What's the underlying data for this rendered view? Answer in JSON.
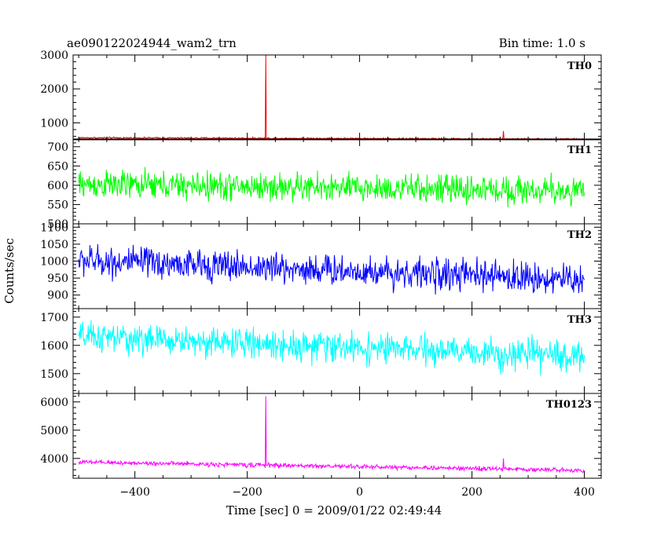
{
  "header": {
    "title": "ae090122024944_wam2_trn",
    "bin_time": "Bin time: 1.0 s"
  },
  "chart_data": {
    "type": "line",
    "title": "ae090122024944_wam2_trn",
    "xlabel": "Time [sec] 0 = 2009/01/22 02:49:44",
    "ylabel": "Counts/sec",
    "xlim": [
      -510,
      430
    ],
    "x_ticks": [
      -400,
      -200,
      0,
      200,
      400
    ],
    "x_tick_labels": [
      "−400",
      "−200",
      "0",
      "200",
      "400"
    ],
    "grid": false,
    "panels": [
      {
        "name": "TH0",
        "color": "#ff0000",
        "ylim": [
          500,
          3000
        ],
        "y_ticks": [
          1000,
          2000,
          3000
        ],
        "y_tick_labels": [
          "1000",
          "2000",
          "3000"
        ],
        "baseline": {
          "start": 560,
          "end": 520,
          "noise": 18
        },
        "spikes": [
          {
            "x": -167,
            "peak": 3000
          },
          {
            "x": 256,
            "peak": 760
          }
        ],
        "x_range": [
          -500,
          400
        ]
      },
      {
        "name": "TH1",
        "color": "#00ff00",
        "ylim": [
          500,
          720
        ],
        "y_ticks": [
          500,
          550,
          600,
          650,
          700
        ],
        "y_tick_labels": [
          "500",
          "550",
          "600",
          "650",
          "700"
        ],
        "baseline": {
          "start": 602,
          "end": 585,
          "noise": 28
        },
        "spikes": [],
        "x_range": [
          -500,
          400
        ]
      },
      {
        "name": "TH2",
        "color": "#0000ff",
        "ylim": [
          860,
          1110
        ],
        "y_ticks": [
          900,
          950,
          1000,
          1050,
          1100
        ],
        "y_tick_labels": [
          "900",
          "950",
          "1000",
          "1050",
          "1100"
        ],
        "baseline": {
          "start": 1002,
          "end": 945,
          "noise": 35
        },
        "spikes": [],
        "x_range": [
          -500,
          400
        ]
      },
      {
        "name": "TH3",
        "color": "#00ffff",
        "ylim": [
          1430,
          1730
        ],
        "y_ticks": [
          1500,
          1600,
          1700
        ],
        "y_tick_labels": [
          "1500",
          "1600",
          "1700"
        ],
        "baseline": {
          "start": 1630,
          "end": 1560,
          "noise": 40
        },
        "spikes": [],
        "x_range": [
          -500,
          400
        ]
      },
      {
        "name": "TH0123",
        "color": "#ff00ff",
        "ylim": [
          3300,
          6300
        ],
        "y_ticks": [
          4000,
          5000,
          6000
        ],
        "y_tick_labels": [
          "4000",
          "5000",
          "6000"
        ],
        "baseline": {
          "start": 3870,
          "end": 3580,
          "noise": 60
        },
        "spikes": [
          {
            "x": -167,
            "peak": 6200
          },
          {
            "x": 256,
            "peak": 4000
          }
        ],
        "x_range": [
          -500,
          400
        ]
      }
    ]
  }
}
